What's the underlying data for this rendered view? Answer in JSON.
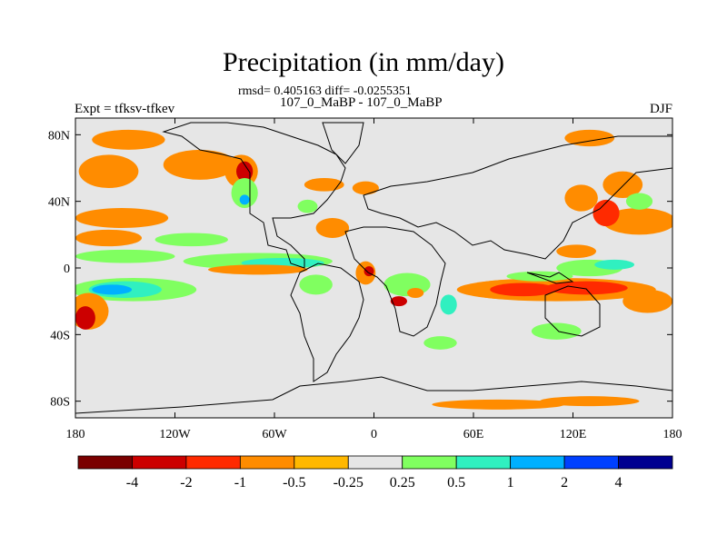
{
  "title": "Precipitation (in mm/day)",
  "stats": "rmsd= 0.405163 diff= -0.0255351",
  "subtitle": "107_0_MaBP - 107_0_MaBP",
  "left_label": "Expt = tfksv-tfkev",
  "right_label": "DJF",
  "colors": {
    "background": "#e6e6e6",
    "coast": "#000000"
  },
  "chart_data": {
    "type": "heatmap",
    "title": "Precipitation (in mm/day)",
    "xlabel": "",
    "ylabel": "",
    "xlim": [
      -180,
      180
    ],
    "ylim": [
      -90,
      90
    ],
    "x_ticks": [
      {
        "value": -180,
        "label": "180"
      },
      {
        "value": -120,
        "label": "120W"
      },
      {
        "value": -60,
        "label": "60W"
      },
      {
        "value": 0,
        "label": "0"
      },
      {
        "value": 60,
        "label": "60E"
      },
      {
        "value": 120,
        "label": "120E"
      },
      {
        "value": 180,
        "label": "180"
      }
    ],
    "y_ticks": [
      {
        "value": 80,
        "label": "80N"
      },
      {
        "value": 40,
        "label": "40N"
      },
      {
        "value": 0,
        "label": "0"
      },
      {
        "value": -40,
        "label": "40S"
      },
      {
        "value": -80,
        "label": "80S"
      }
    ],
    "colorbar": {
      "levels": [
        "-4",
        "-2",
        "-1",
        "-0.5",
        "-0.25",
        "0.25",
        "0.5",
        "1",
        "2",
        "4"
      ],
      "colors": [
        "#7a0000",
        "#cc0000",
        "#ff2a00",
        "#ff8c00",
        "#ffb800",
        "#e6e6e6",
        "#80ff60",
        "#30f0c0",
        "#00b0ff",
        "#0040ff",
        "#000090"
      ]
    },
    "anomalies": [
      {
        "lon": -148,
        "lat": 77,
        "rlon": 22,
        "rlat": 6,
        "level": -0.5
      },
      {
        "lon": -160,
        "lat": 58,
        "rlon": 18,
        "rlat": 10,
        "level": -0.5
      },
      {
        "lon": -105,
        "lat": 62,
        "rlon": 22,
        "rlat": 9,
        "level": -0.5
      },
      {
        "lon": -80,
        "lat": 58,
        "rlon": 10,
        "rlat": 10,
        "level": -0.5
      },
      {
        "lon": -78,
        "lat": 58,
        "rlon": 5,
        "rlat": 6,
        "level": -2
      },
      {
        "lon": -78,
        "lat": 45,
        "rlon": 8,
        "rlat": 9,
        "level": 0.5
      },
      {
        "lon": -78,
        "lat": 41,
        "rlon": 3,
        "rlat": 3,
        "level": 2
      },
      {
        "lon": -152,
        "lat": 30,
        "rlon": 28,
        "rlat": 6,
        "level": -0.5
      },
      {
        "lon": -160,
        "lat": 18,
        "rlon": 20,
        "rlat": 5,
        "level": -0.5
      },
      {
        "lon": -110,
        "lat": 17,
        "rlon": 22,
        "rlat": 4,
        "level": 0.5
      },
      {
        "lon": -150,
        "lat": 7,
        "rlon": 30,
        "rlat": 4,
        "level": 0.5
      },
      {
        "lon": -70,
        "lat": 4,
        "rlon": 45,
        "rlat": 5,
        "level": 0.5
      },
      {
        "lon": -55,
        "lat": 3,
        "rlon": 25,
        "rlat": 3,
        "level": 1
      },
      {
        "lon": -70,
        "lat": -1,
        "rlon": 30,
        "rlat": 3,
        "level": -0.5
      },
      {
        "lon": -145,
        "lat": -13,
        "rlon": 38,
        "rlat": 7,
        "level": 0.5
      },
      {
        "lon": -150,
        "lat": -13,
        "rlon": 22,
        "rlat": 5,
        "level": 1
      },
      {
        "lon": -158,
        "lat": -13,
        "rlon": 12,
        "rlat": 3,
        "level": 2
      },
      {
        "lon": -172,
        "lat": -26,
        "rlon": 12,
        "rlat": 11,
        "level": -0.5
      },
      {
        "lon": -174,
        "lat": -30,
        "rlon": 6,
        "rlat": 7,
        "level": -2
      },
      {
        "lon": -25,
        "lat": 24,
        "rlon": 10,
        "rlat": 6,
        "level": -0.5
      },
      {
        "lon": -30,
        "lat": 50,
        "rlon": 12,
        "rlat": 4,
        "level": -0.5
      },
      {
        "lon": -5,
        "lat": 48,
        "rlon": 8,
        "rlat": 4,
        "level": -0.5
      },
      {
        "lon": -40,
        "lat": 37,
        "rlon": 6,
        "rlat": 4,
        "level": 0.5
      },
      {
        "lon": -5,
        "lat": -3,
        "rlon": 6,
        "rlat": 7,
        "level": -0.5
      },
      {
        "lon": -3,
        "lat": -2,
        "rlon": 3,
        "rlat": 3,
        "level": -2
      },
      {
        "lon": -35,
        "lat": -10,
        "rlon": 10,
        "rlat": 6,
        "level": 0.5
      },
      {
        "lon": 20,
        "lat": -10,
        "rlon": 14,
        "rlat": 7,
        "level": 0.5
      },
      {
        "lon": 15,
        "lat": -20,
        "rlon": 5,
        "rlat": 3,
        "level": -2
      },
      {
        "lon": 25,
        "lat": -15,
        "rlon": 5,
        "rlat": 3,
        "level": -0.5
      },
      {
        "lon": 45,
        "lat": -22,
        "rlon": 5,
        "rlat": 6,
        "level": 1
      },
      {
        "lon": 40,
        "lat": -45,
        "rlon": 10,
        "rlat": 4,
        "level": 0.5
      },
      {
        "lon": 85,
        "lat": -13,
        "rlon": 30,
        "rlat": 6,
        "level": -0.5
      },
      {
        "lon": 110,
        "lat": -13,
        "rlon": 60,
        "rlat": 7,
        "level": -0.5
      },
      {
        "lon": 90,
        "lat": -13,
        "rlon": 20,
        "rlat": 4,
        "level": -1
      },
      {
        "lon": 128,
        "lat": -12,
        "rlon": 25,
        "rlat": 4,
        "level": -1
      },
      {
        "lon": 165,
        "lat": -20,
        "rlon": 15,
        "rlat": 7,
        "level": -0.5
      },
      {
        "lon": 100,
        "lat": -5,
        "rlon": 20,
        "rlat": 3,
        "level": 0.5
      },
      {
        "lon": 130,
        "lat": 0,
        "rlon": 20,
        "rlat": 5,
        "level": 0.5
      },
      {
        "lon": 145,
        "lat": 2,
        "rlon": 12,
        "rlat": 3,
        "level": 1
      },
      {
        "lon": 110,
        "lat": -38,
        "rlon": 15,
        "rlat": 5,
        "level": 0.5
      },
      {
        "lon": 150,
        "lat": 50,
        "rlon": 12,
        "rlat": 8,
        "level": -0.5
      },
      {
        "lon": 160,
        "lat": 28,
        "rlon": 22,
        "rlat": 8,
        "level": -0.5
      },
      {
        "lon": 140,
        "lat": 33,
        "rlon": 8,
        "rlat": 8,
        "level": -1
      },
      {
        "lon": 125,
        "lat": 42,
        "rlon": 10,
        "rlat": 8,
        "level": -0.5
      },
      {
        "lon": 122,
        "lat": 10,
        "rlon": 12,
        "rlat": 4,
        "level": -0.5
      },
      {
        "lon": 130,
        "lat": 78,
        "rlon": 15,
        "rlat": 5,
        "level": -0.5
      },
      {
        "lon": 160,
        "lat": 40,
        "rlon": 8,
        "rlat": 5,
        "level": 0.5
      },
      {
        "lon": 75,
        "lat": -82,
        "rlon": 40,
        "rlat": 3,
        "level": -0.5
      },
      {
        "lon": 130,
        "lat": -80,
        "rlon": 30,
        "rlat": 3,
        "level": -0.5
      }
    ]
  }
}
